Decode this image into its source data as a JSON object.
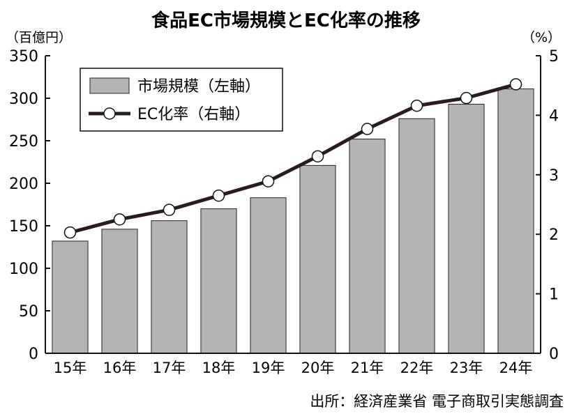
{
  "chart_data": {
    "type": "bar+line",
    "title": "食品EC市場規模とEC化率の推移",
    "categories": [
      "15年",
      "16年",
      "17年",
      "18年",
      "19年",
      "20年",
      "21年",
      "22年",
      "23年",
      "24年"
    ],
    "series": [
      {
        "name": "市場規模（左軸）",
        "type": "bar",
        "axis": "left",
        "values": [
          132,
          146,
          156,
          170,
          183,
          221,
          252,
          276,
          293,
          311
        ]
      },
      {
        "name": "EC化率（右軸）",
        "type": "line",
        "axis": "right",
        "values": [
          2.03,
          2.25,
          2.41,
          2.65,
          2.89,
          3.31,
          3.77,
          4.16,
          4.29,
          4.52
        ]
      }
    ],
    "left_axis": {
      "label": "（百億円）",
      "ylim": [
        0,
        350
      ],
      "ticks": [
        0,
        50,
        100,
        150,
        200,
        250,
        300,
        350
      ]
    },
    "right_axis": {
      "label": "（%）",
      "ylim": [
        0,
        5
      ],
      "ticks": [
        0,
        1,
        2,
        3,
        4,
        5
      ]
    },
    "legend_position": "top-left",
    "source": "出所：経済産業省 電子商取引実態調査",
    "colors": {
      "bar": "#b4b4b4",
      "line": "#2a1c1c",
      "marker_fill": "#ffffff",
      "axis": "#111111"
    }
  }
}
